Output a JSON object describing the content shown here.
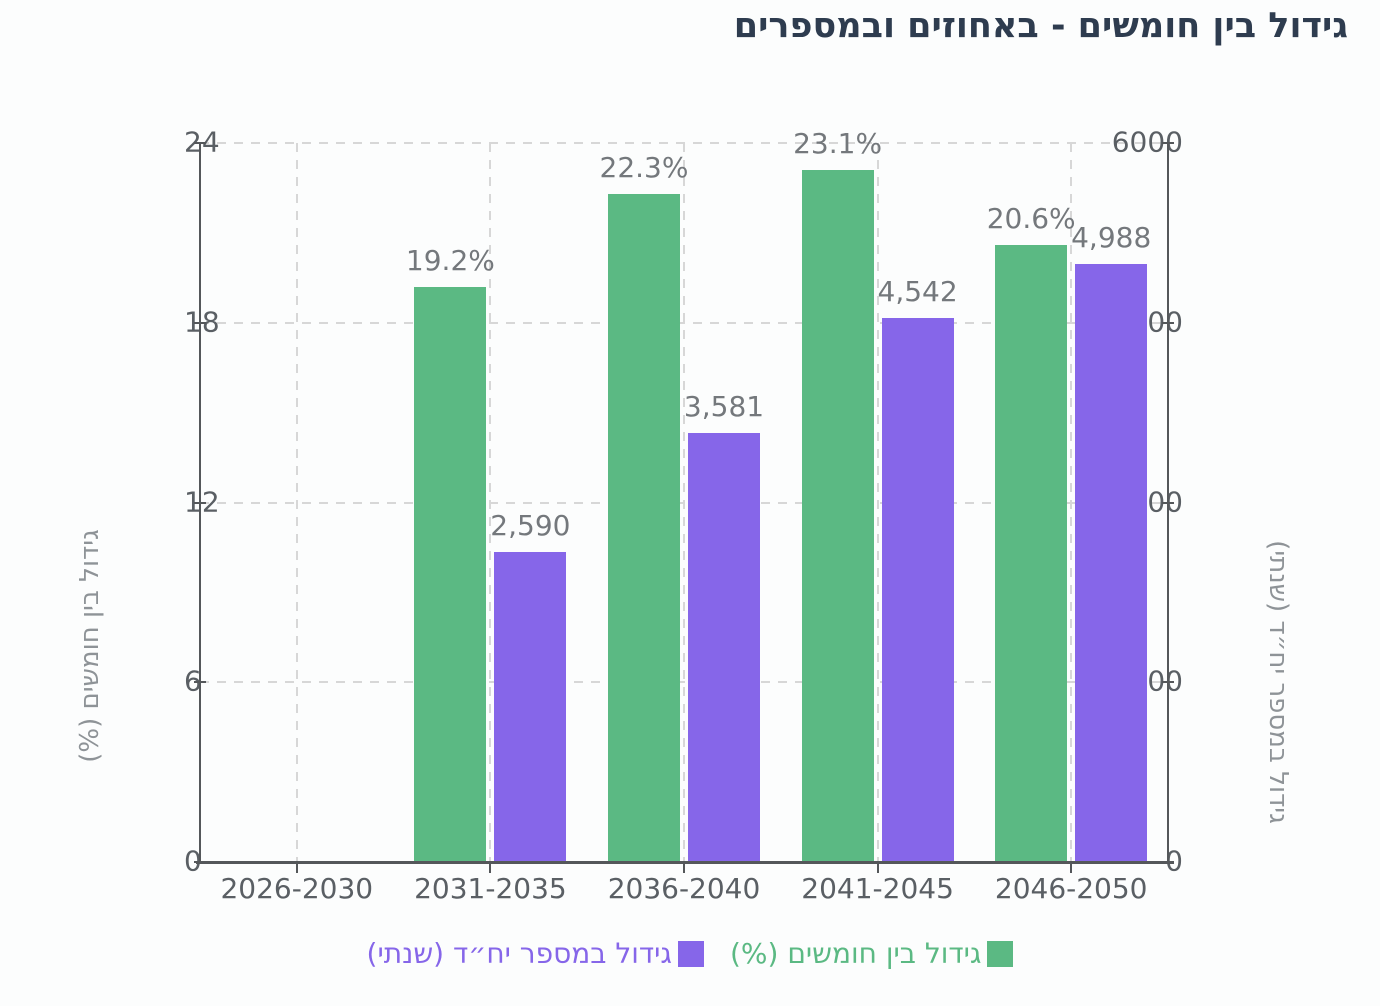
{
  "title": "גידול בין חומשים - באחוזים ובמספרים",
  "colors": {
    "percent_series": "#5bb983",
    "units_series": "#8666e9",
    "title_text": "#2e3c4f",
    "tick_text": "#5a5f64",
    "bar_label_text": "#74787c",
    "axis_title_text": "#8e9397",
    "axis_line": "#54575a",
    "grid_line": "#d7d7d7",
    "background": "#fcfdfd"
  },
  "chart_data": {
    "type": "bar",
    "title": "גידול בין חומשים - באחוזים ובמספרים",
    "categories": [
      "2026-2030",
      "2031-2035",
      "2036-2040",
      "2041-2045",
      "2046-2050"
    ],
    "series": [
      {
        "key": "percent",
        "name": "גידול בין חומשים (%)",
        "yaxis": "left",
        "color": "#5bb983",
        "values": [
          null,
          19.2,
          22.3,
          23.1,
          20.6
        ],
        "data_labels": [
          "",
          "19.2%",
          "22.3%",
          "23.1%",
          "20.6%"
        ]
      },
      {
        "key": "units",
        "name": "גידול במספר יח״ד (שנתי)",
        "yaxis": "right",
        "color": "#8666e9",
        "values": [
          null,
          2590,
          3581,
          4542,
          4988
        ],
        "data_labels": [
          "",
          "2,590",
          "3,581",
          "4,542",
          "4,988"
        ]
      }
    ],
    "left_axis": {
      "label": "גידול בין חומשים (%)",
      "ticks": [
        "0",
        "6",
        "12",
        "18",
        "24"
      ],
      "tick_values": [
        0,
        6,
        12,
        18,
        24
      ],
      "min": 0,
      "max": 24
    },
    "right_axis": {
      "label": "גידול במספר יח״ד (שנתי)",
      "ticks": [
        "0",
        "1500",
        "3000",
        "4500",
        "6000"
      ],
      "tick_values": [
        0,
        1500,
        3000,
        4500,
        6000
      ],
      "min": 0,
      "max": 6000
    },
    "grid": true,
    "legend_position": "bottom",
    "legend": [
      {
        "label": "גידול במספר יח״ד (שנתי)",
        "color": "#8666e9"
      },
      {
        "label": "גידול בין חומשים (%)",
        "color": "#5bb983"
      }
    ]
  }
}
